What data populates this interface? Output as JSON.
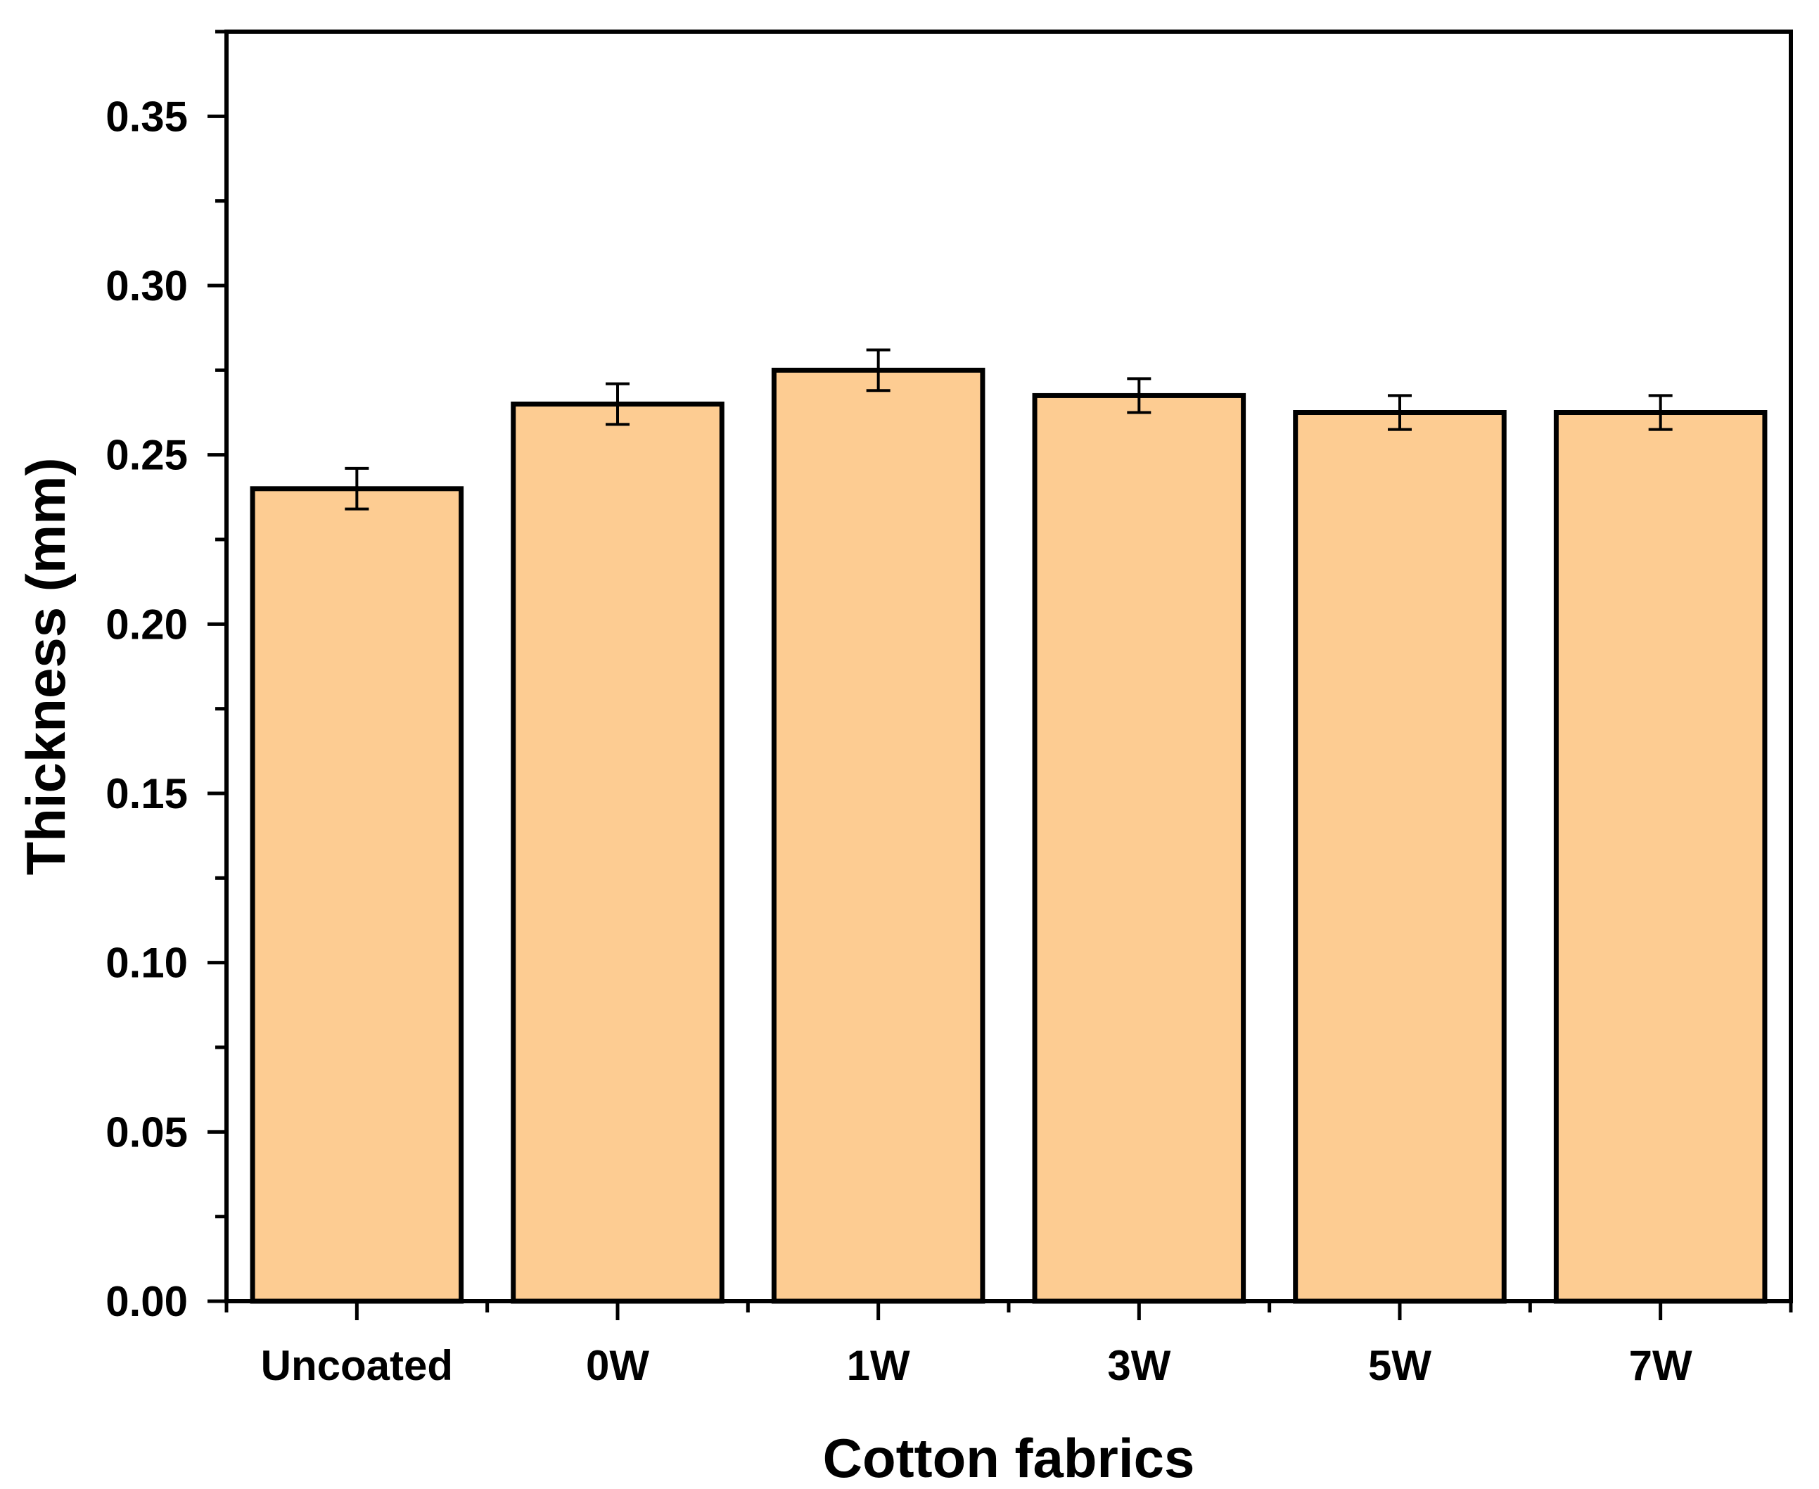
{
  "chart_data": {
    "type": "bar",
    "title": "",
    "xlabel": "Cotton fabrics",
    "ylabel": "Thickness (mm)",
    "ylim": [
      0,
      0.375
    ],
    "yticks": [
      "0.00",
      "0.05",
      "0.10",
      "0.15",
      "0.20",
      "0.25",
      "0.30",
      "0.35"
    ],
    "ytick_values": [
      0,
      0.05,
      0.1,
      0.15,
      0.2,
      0.25,
      0.3,
      0.35
    ],
    "categories": [
      "Uncoated",
      "0W",
      "1W",
      "3W",
      "5W",
      "7W"
    ],
    "values": [
      0.24,
      0.265,
      0.275,
      0.2675,
      0.2625,
      0.2625
    ],
    "errors": [
      0.006,
      0.006,
      0.006,
      0.005,
      0.005,
      0.005
    ],
    "grid": false,
    "legend": "none",
    "colors": {
      "bar_fill": "#FDCC92",
      "bar_edge": "#000000",
      "axis": "#000000"
    }
  }
}
